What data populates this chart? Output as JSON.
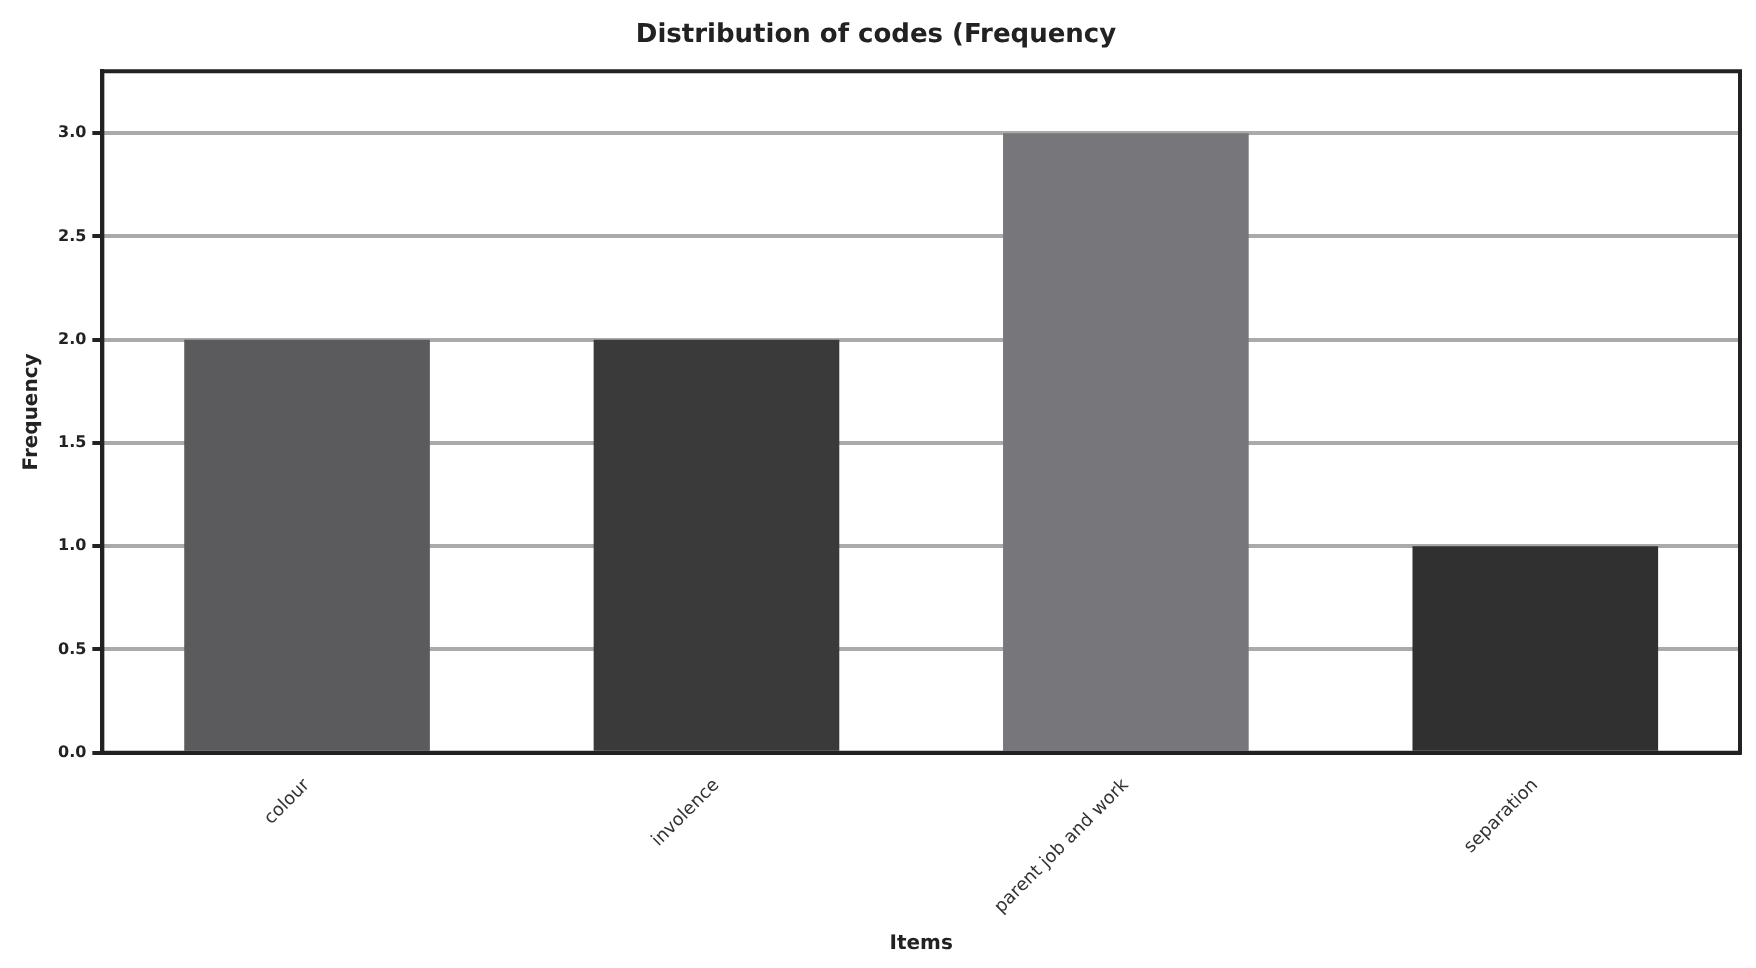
{
  "chart_data": {
    "type": "bar",
    "title": "Distribution of codes (Frequency",
    "xlabel": "Items",
    "ylabel": "Frequency",
    "categories": [
      "colour",
      "involence",
      "parent job and work",
      "separation"
    ],
    "values": [
      2,
      2,
      3,
      1
    ],
    "colors": [
      "#5b5b5d",
      "#3a3a3a",
      "#77777b",
      "#303030"
    ],
    "ylim": [
      0,
      3.3
    ],
    "yticks": [
      {
        "value": 0,
        "label": "0.0"
      },
      {
        "value": 0.5,
        "label": "0.5"
      },
      {
        "value": 1,
        "label": "1.0"
      },
      {
        "value": 1.5,
        "label": "1.5"
      },
      {
        "value": 2,
        "label": "2.0"
      },
      {
        "value": 2.5,
        "label": "2.5"
      },
      {
        "value": 3,
        "label": "3.0"
      }
    ],
    "grid": "y",
    "legend": false
  }
}
